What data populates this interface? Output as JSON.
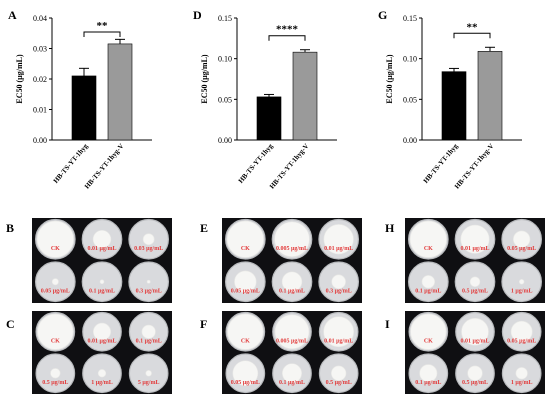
{
  "colors": {
    "bar_control": "#000000",
    "bar_variant": "#9a9a9a",
    "photo_background": "#0f0f12",
    "dish_fill": "#d9dadd",
    "dish_rim": "#b8babd",
    "colony_fill": "#f6f6f4",
    "label_red": "#e23b3b"
  },
  "chart_data": [
    {
      "panel": "A",
      "type": "bar",
      "categories": [
        "HB-TS-YT-1hyg",
        "HB-TS-YT-1hyg-V"
      ],
      "values": [
        0.021,
        0.0315
      ],
      "errors": [
        0.0025,
        0.0015
      ],
      "ylabel": "EC50 (μg/mL)",
      "ylim": [
        0,
        0.04
      ],
      "yticks": [
        "0.00",
        "0.01",
        "0.02",
        "0.03",
        "0.04"
      ],
      "significance": "**",
      "bar_colors": [
        "#000000",
        "#9a9a9a"
      ]
    },
    {
      "panel": "D",
      "type": "bar",
      "categories": [
        "HB-TS-YT-1hyg",
        "HB-TS-YT-1hyg-V"
      ],
      "values": [
        0.053,
        0.108
      ],
      "errors": [
        0.003,
        0.003
      ],
      "ylabel": "EC50 (μg/mL)",
      "ylim": [
        0,
        0.15
      ],
      "yticks": [
        "0.00",
        "0.05",
        "0.10",
        "0.15"
      ],
      "significance": "****",
      "bar_colors": [
        "#000000",
        "#9a9a9a"
      ]
    },
    {
      "panel": "G",
      "type": "bar",
      "categories": [
        "HB-TS-YT-1hyg",
        "HB-TS-YT-1hyg-V"
      ],
      "values": [
        0.084,
        0.109
      ],
      "errors": [
        0.004,
        0.005
      ],
      "ylabel": "EC50 (μg/mL)",
      "ylim": [
        0,
        0.15
      ],
      "yticks": [
        "0.00",
        "0.05",
        "0.10",
        "0.15"
      ],
      "significance": "**",
      "bar_colors": [
        "#000000",
        "#9a9a9a"
      ]
    }
  ],
  "photo_panels": [
    {
      "panel": "B",
      "labels": [
        "CK",
        "0.01 μg/mL",
        "0.03 μg/mL",
        "0.05 μg/mL",
        "0.1 μg/mL",
        "0.3 μg/mL"
      ],
      "colony_fraction": [
        0.92,
        0.45,
        0.28,
        0.16,
        0.1,
        0.08
      ]
    },
    {
      "panel": "E",
      "labels": [
        "CK",
        "0.005 μg/mL",
        "0.01 μg/mL",
        "0.05 μg/mL",
        "0.1 μg/mL",
        "0.3 μg/mL"
      ],
      "colony_fraction": [
        0.92,
        0.88,
        0.75,
        0.55,
        0.5,
        0.35
      ]
    },
    {
      "panel": "H",
      "labels": [
        "CK",
        "0.01 μg/mL",
        "0.05 μg/mL",
        "0.1 μg/mL",
        "0.5 μg/mL",
        "1 μg/mL"
      ],
      "colony_fraction": [
        0.92,
        0.72,
        0.42,
        0.32,
        0.25,
        0.12
      ]
    },
    {
      "panel": "C",
      "labels": [
        "CK",
        "0.01 μg/mL",
        "0.1 μg/mL",
        "0.5 μg/mL",
        "1 μg/mL",
        "5 μg/mL"
      ],
      "colony_fraction": [
        0.92,
        0.45,
        0.35,
        0.25,
        0.2,
        0.15
      ]
    },
    {
      "panel": "F",
      "labels": [
        "CK",
        "0.005 μg/mL",
        "0.01 μg/mL",
        "0.05 μg/mL",
        "0.1 μg/mL",
        "0.5 μg/mL"
      ],
      "colony_fraction": [
        0.92,
        0.88,
        0.78,
        0.65,
        0.5,
        0.38
      ]
    },
    {
      "panel": "I",
      "labels": [
        "CK",
        "0.01 μg/mL",
        "0.05 μg/mL",
        "0.1 μg/mL",
        "0.5 μg/mL",
        "1 μg/mL"
      ],
      "colony_fraction": [
        0.92,
        0.7,
        0.55,
        0.45,
        0.38,
        0.3
      ]
    }
  ]
}
